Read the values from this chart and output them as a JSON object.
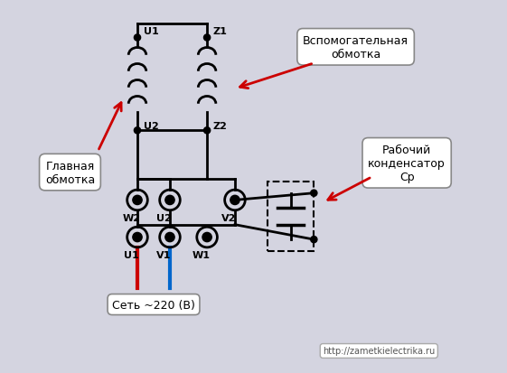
{
  "bg_color": "#d4d4e0",
  "circuit_color": "black",
  "red_wire": "#cc0000",
  "blue_wire": "#0066cc",
  "arrow_color": "#cc0000",
  "label_glavnaya": "Главная\nобмотка",
  "label_vspom": "Вспомогательная\nобмотка",
  "label_rabochiy": "Рабочий\nконденсатор\nСр",
  "label_set": "Сеть ~220 (В)",
  "label_url": "http://zametkielectrika.ru"
}
